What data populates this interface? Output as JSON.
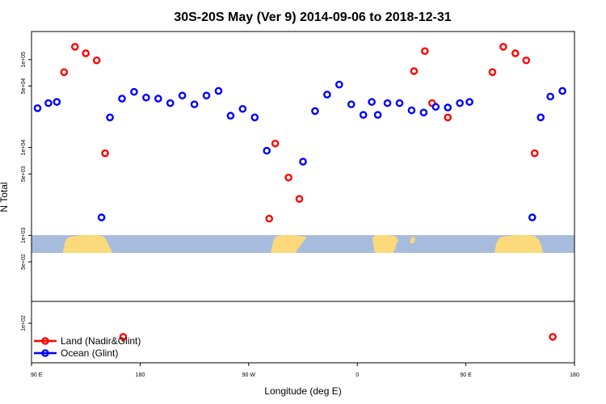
{
  "chart_data": {
    "type": "scatter",
    "title": "30S-20S May (Ver 9)   2014-09-06 to 2018-12-31",
    "xlabel": "Longitude (deg E)",
    "ylabel": "N Total",
    "xlim": [
      90,
      540
    ],
    "ylim_log10": [
      1.55,
      5.32
    ],
    "y_log_scale": true,
    "x_ticks": [
      {
        "x": 90,
        "label": "90 E"
      },
      {
        "x": 180,
        "label": "180"
      },
      {
        "x": 270,
        "label": "90 W"
      },
      {
        "x": 360,
        "label": "0"
      },
      {
        "x": 450,
        "label": "90 E"
      },
      {
        "x": 540,
        "label": "180"
      }
    ],
    "y_ticks": [
      {
        "y": 100,
        "label": "1e+02"
      },
      {
        "y": 500,
        "label": "5e+02"
      },
      {
        "y": 1000,
        "label": "1e+03"
      },
      {
        "y": 5000,
        "label": "5e+03"
      },
      {
        "y": 10000,
        "label": "1e+04"
      },
      {
        "y": 50000,
        "label": "5e+04"
      },
      {
        "y": 100000,
        "label": "1e+05"
      }
    ],
    "series": [
      {
        "name": "Land (Nadir&Glint)",
        "color": "#ff0000",
        "points": [
          {
            "x": 117,
            "y": 72000
          },
          {
            "x": 126,
            "y": 140000
          },
          {
            "x": 135,
            "y": 118000
          },
          {
            "x": 144,
            "y": 98000
          },
          {
            "x": 151,
            "y": 8600
          },
          {
            "x": 166,
            "y": 70
          },
          {
            "x": 287,
            "y": 1550
          },
          {
            "x": 292,
            "y": 11100
          },
          {
            "x": 303,
            "y": 4550
          },
          {
            "x": 312,
            "y": 2600
          },
          {
            "x": 407,
            "y": 74000
          },
          {
            "x": 416,
            "y": 125000
          },
          {
            "x": 422,
            "y": 32000
          },
          {
            "x": 435,
            "y": 22000
          },
          {
            "x": 472,
            "y": 72000
          },
          {
            "x": 481,
            "y": 140000
          },
          {
            "x": 491,
            "y": 118000
          },
          {
            "x": 500,
            "y": 98000
          },
          {
            "x": 507,
            "y": 8600
          },
          {
            "x": 522,
            "y": 70
          }
        ]
      },
      {
        "name": "Ocean (Glint)",
        "color": "#0000ff",
        "points": [
          {
            "x": 95,
            "y": 28000
          },
          {
            "x": 104,
            "y": 32000
          },
          {
            "x": 111,
            "y": 33000
          },
          {
            "x": 148,
            "y": 1600
          },
          {
            "x": 155,
            "y": 22000
          },
          {
            "x": 165,
            "y": 36000
          },
          {
            "x": 175,
            "y": 43000
          },
          {
            "x": 185,
            "y": 37000
          },
          {
            "x": 195,
            "y": 36000
          },
          {
            "x": 205,
            "y": 32000
          },
          {
            "x": 215,
            "y": 39000
          },
          {
            "x": 225,
            "y": 31000
          },
          {
            "x": 235,
            "y": 39000
          },
          {
            "x": 245,
            "y": 44000
          },
          {
            "x": 255,
            "y": 23000
          },
          {
            "x": 265,
            "y": 27500
          },
          {
            "x": 275,
            "y": 22000
          },
          {
            "x": 285,
            "y": 9200
          },
          {
            "x": 315,
            "y": 6900
          },
          {
            "x": 325,
            "y": 26000
          },
          {
            "x": 335,
            "y": 40000
          },
          {
            "x": 345,
            "y": 52000
          },
          {
            "x": 355,
            "y": 31000
          },
          {
            "x": 365,
            "y": 23500
          },
          {
            "x": 372,
            "y": 33000
          },
          {
            "x": 377,
            "y": 23500
          },
          {
            "x": 385,
            "y": 32000
          },
          {
            "x": 395,
            "y": 32000
          },
          {
            "x": 405,
            "y": 26500
          },
          {
            "x": 415,
            "y": 25000
          },
          {
            "x": 425,
            "y": 29000
          },
          {
            "x": 435,
            "y": 28500
          },
          {
            "x": 445,
            "y": 32000
          },
          {
            "x": 453,
            "y": 33000
          },
          {
            "x": 505,
            "y": 1600
          },
          {
            "x": 512,
            "y": 22000
          },
          {
            "x": 520,
            "y": 38000
          },
          {
            "x": 530,
            "y": 44000
          }
        ]
      }
    ],
    "legend": {
      "placement": "bottom-left",
      "entries": [
        {
          "label": "Land (Nadir&Glint)",
          "color": "#ff0000"
        },
        {
          "label": "Ocean (Glint)",
          "color": "#0000ff"
        }
      ]
    },
    "map_strip": {
      "ocean_color": "#a7bcdc",
      "land_color": "#fcd97a"
    }
  }
}
